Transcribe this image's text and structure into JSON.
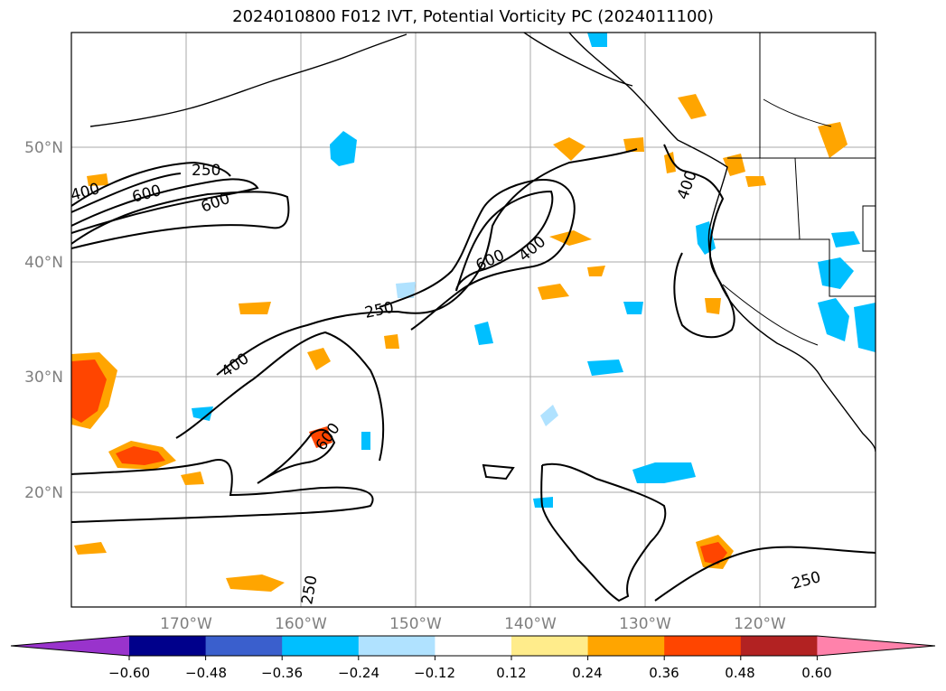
{
  "title": "2024010800 F012 IVT, Potential Vorticity PC (2024011100)",
  "map": {
    "lon_labels": [
      "170°W",
      "160°W",
      "150°W",
      "140°W",
      "130°W",
      "120°W"
    ],
    "lat_labels": [
      "50°N",
      "40°N",
      "30°N",
      "20°N"
    ],
    "contour_labels": [
      "250",
      "400",
      "600",
      "600",
      "250",
      "600",
      "400",
      "250",
      "400",
      "600",
      "400",
      "250",
      "250"
    ]
  },
  "colorbar": {
    "ticks": [
      "−0.60",
      "−0.48",
      "−0.36",
      "−0.24",
      "−0.12",
      "0.12",
      "0.24",
      "0.36",
      "0.48",
      "0.60"
    ],
    "colors": [
      "#9933cc",
      "#00008b",
      "#3a5fcd",
      "#00bfff",
      "#b0e2ff",
      "#ffffff",
      "#ffec8b",
      "#ffa500",
      "#ff4500",
      "#b22222",
      "#ff82ab"
    ]
  },
  "colors": {
    "grid": "#aaaaaa",
    "contour": "#000000",
    "coast": "#000000",
    "label_gray": "#7f7f7f"
  }
}
